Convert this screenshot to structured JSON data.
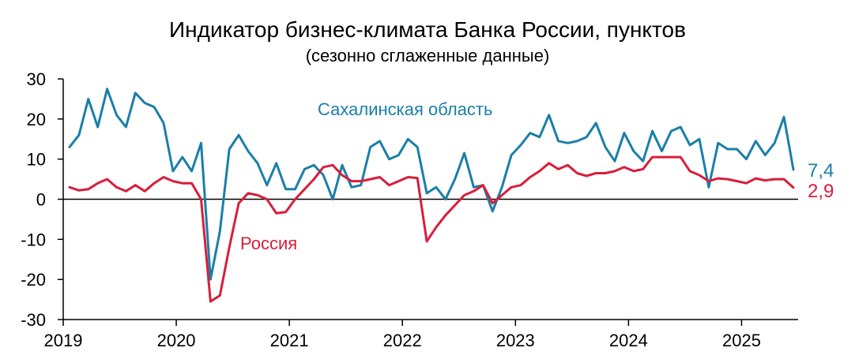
{
  "chart_data": {
    "type": "line",
    "title": "Индикатор бизнес-климата Банка России, пунктов",
    "subtitle": "(сезонно сглаженные данные)",
    "ylim": [
      -30,
      30
    ],
    "yticks": [
      30,
      20,
      10,
      0,
      -10,
      -20,
      -30
    ],
    "ytick_labels": [
      "30",
      "20",
      "10",
      "0",
      "-10",
      "-20",
      "-30"
    ],
    "xtick_labels": [
      "2019",
      "2020",
      "2021",
      "2022",
      "2023",
      "2024",
      "2025"
    ],
    "x_start": "2019-01",
    "x_end": "2025-07",
    "grid": false,
    "series": [
      {
        "name": "Сахалинская область",
        "color": "#1a7fa8",
        "end_label": "7,4",
        "values": [
          13,
          16,
          25,
          18,
          27.5,
          21,
          18,
          26.5,
          24,
          23,
          19,
          7,
          10.5,
          7,
          14,
          -20,
          -8,
          12.5,
          16,
          12,
          9,
          3.5,
          9,
          2.5,
          2.5,
          7.5,
          8.5,
          6,
          0,
          8.5,
          3,
          3.5,
          13,
          14.5,
          10,
          11,
          15,
          13,
          1.5,
          3,
          0,
          5,
          11.5,
          3,
          3.5,
          -3,
          3,
          11,
          13.5,
          16.5,
          15.5,
          21,
          14.5,
          14,
          14.5,
          15.5,
          19,
          13,
          9.5,
          16.5,
          12,
          9.5,
          17,
          12,
          17,
          18,
          13.5,
          15,
          3,
          14,
          12.5,
          12.5,
          10,
          14.5,
          11,
          14,
          20.5,
          7.4
        ]
      },
      {
        "name": "Россия",
        "color": "#d81e3c",
        "end_label": "2,9",
        "values": [
          3,
          2.2,
          2.5,
          4,
          5,
          3,
          2,
          3.5,
          2,
          4,
          5.5,
          4.5,
          4,
          4,
          0,
          -25.5,
          -24,
          -12,
          -1,
          1.5,
          1,
          0,
          -3.5,
          -3.2,
          0,
          2.5,
          5,
          8,
          8.5,
          6,
          4.5,
          4.5,
          5,
          5.5,
          3.5,
          4.5,
          5.5,
          5.3,
          -10.5,
          -7,
          -4,
          -1.5,
          1,
          2,
          3.5,
          -1,
          1,
          3,
          3.5,
          5.5,
          7,
          9,
          7.5,
          8.5,
          6.5,
          5.8,
          6.5,
          6.5,
          7,
          8,
          7,
          7.5,
          10.5,
          10.5,
          10.5,
          10.5,
          7,
          6,
          4.5,
          5.2,
          5,
          4.5,
          4,
          5.2,
          4.7,
          5,
          5,
          2.9
        ]
      }
    ]
  }
}
